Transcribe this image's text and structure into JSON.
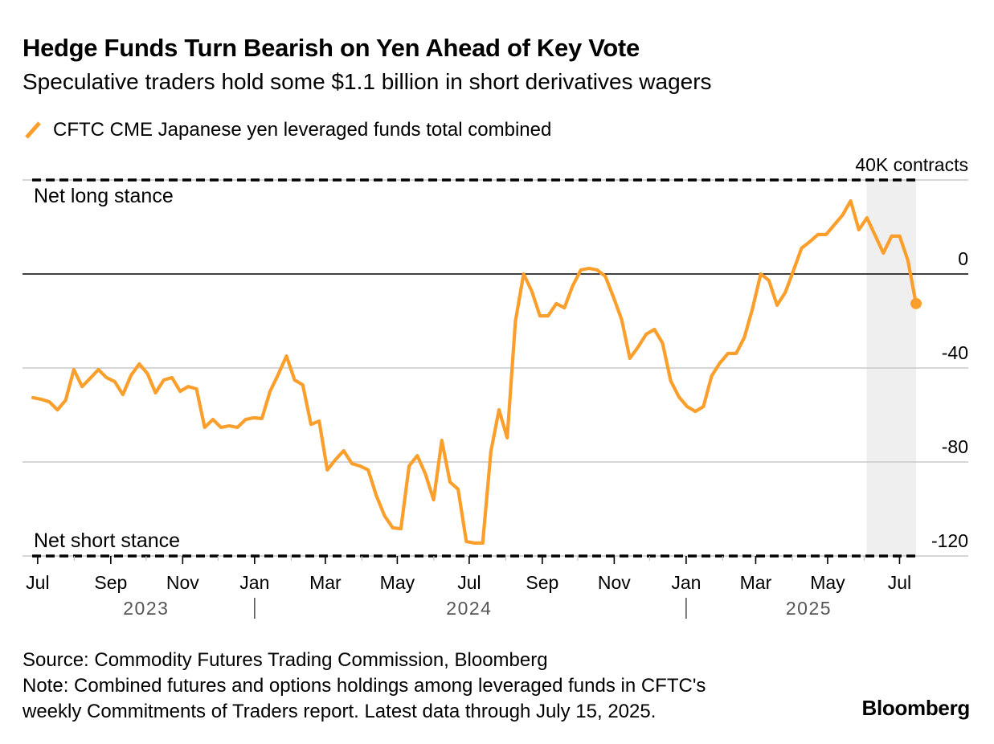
{
  "header": {
    "title": "Hedge Funds Turn Bearish on Yen Ahead of Key Vote",
    "subtitle": "Speculative traders hold some $1.1 billion in short derivatives wagers"
  },
  "footer": {
    "source": "Source: Commodity Futures Trading Commission, Bloomberg",
    "note_line1": "Note: Combined futures and options holdings among leveraged funds in CFTC's",
    "note_line2": "weekly Commitments of Traders report. Latest data through July 15, 2025.",
    "brand": "Bloomberg"
  },
  "colors": {
    "series": "#FB9F2C",
    "shade": "#EFEFEF",
    "grid": "#C8C8C8",
    "zero": "#000000",
    "text": "#000000",
    "year_text": "#555555"
  },
  "chart_data": {
    "type": "line",
    "title": "Hedge Funds Turn Bearish on Yen Ahead of Key Vote",
    "subtitle": "Speculative traders hold some $1.1 billion in short derivatives wagers",
    "legend": [
      "CFTC CME Japanese yen leveraged funds total combined"
    ],
    "legend_position": "top-left",
    "ylabel": "",
    "yunit": "K contracts",
    "ylim": [
      -120,
      40
    ],
    "yticks": [
      40,
      0,
      -40,
      -80,
      -120
    ],
    "ytick_labels": [
      "40K contracts",
      "0",
      "-40",
      "-80",
      "-120"
    ],
    "grid": true,
    "annotations": {
      "top_band": "Net long stance",
      "bottom_band": "Net short stance"
    },
    "shaded_region": {
      "start": "2025-06-03",
      "end": "2025-07-15"
    },
    "x_start": "2023-06-27",
    "x_end": "2025-07-15",
    "x_frequency": "weekly",
    "xticks": [
      {
        "label": "Jul",
        "date": "2023-07-01"
      },
      {
        "label": "Sep",
        "date": "2023-09-01"
      },
      {
        "label": "Nov",
        "date": "2023-11-01"
      },
      {
        "label": "Jan",
        "date": "2024-01-01"
      },
      {
        "label": "Mar",
        "date": "2024-03-01"
      },
      {
        "label": "May",
        "date": "2024-05-01"
      },
      {
        "label": "Jul",
        "date": "2024-07-01"
      },
      {
        "label": "Sep",
        "date": "2024-09-01"
      },
      {
        "label": "Nov",
        "date": "2024-11-01"
      },
      {
        "label": "Jan",
        "date": "2025-01-01"
      },
      {
        "label": "Mar",
        "date": "2025-03-01"
      },
      {
        "label": "May",
        "date": "2025-05-01"
      },
      {
        "label": "Jul",
        "date": "2025-07-01"
      }
    ],
    "year_labels": [
      {
        "label": "2023",
        "date": "2023-10-01"
      },
      {
        "label": "2024",
        "date": "2024-07-01"
      },
      {
        "label": "2025",
        "date": "2025-04-15"
      }
    ],
    "year_dividers": [
      "2024-01-01",
      "2025-01-01"
    ],
    "series": [
      {
        "name": "CFTC CME Japanese yen leveraged funds total combined",
        "values": [
          -52.6,
          -53.3,
          -54.4,
          -57.8,
          -53.7,
          -40.7,
          -47.9,
          -44.4,
          -40.7,
          -44.1,
          -45.8,
          -51.3,
          -43.1,
          -38.3,
          -42.4,
          -50.6,
          -45.1,
          -44.1,
          -49.9,
          -47.9,
          -48.9,
          -65.3,
          -61.9,
          -65.3,
          -64.6,
          -65.3,
          -61.9,
          -61.2,
          -61.5,
          -49.9,
          -42.7,
          -34.9,
          -45.1,
          -47.2,
          -64.0,
          -62.6,
          -83.4,
          -79.0,
          -75.2,
          -80.7,
          -81.7,
          -83.4,
          -94.4,
          -102.9,
          -108.0,
          -108.4,
          -81.7,
          -77.3,
          -85.1,
          -96.1,
          -70.8,
          -88.5,
          -91.6,
          -113.8,
          -114.5,
          -114.5,
          -75.5,
          -57.8,
          -69.7,
          -20.2,
          0.0,
          -7.2,
          -17.8,
          -17.8,
          -12.6,
          -14.4,
          -5.1,
          1.7,
          2.4,
          1.7,
          -1.0,
          -9.9,
          -19.5,
          -35.9,
          -31.1,
          -25.6,
          -23.6,
          -29.4,
          -45.5,
          -52.3,
          -56.4,
          -58.5,
          -56.4,
          -43.4,
          -37.9,
          -33.8,
          -33.8,
          -27.0,
          -14.7,
          0.0,
          -2.7,
          -13.3,
          -7.9,
          1.4,
          11.0,
          13.7,
          16.8,
          16.8,
          20.9,
          25.0,
          31.1,
          18.8,
          23.9,
          16.4,
          8.9,
          16.1,
          16.1,
          5.8,
          -12.6
        ]
      }
    ],
    "last_value": -12.6,
    "last_date": "2025-07-15"
  },
  "icons": {
    "legend_swatch": "orange-slash-line-icon",
    "endpoint_marker": "orange-dot"
  }
}
